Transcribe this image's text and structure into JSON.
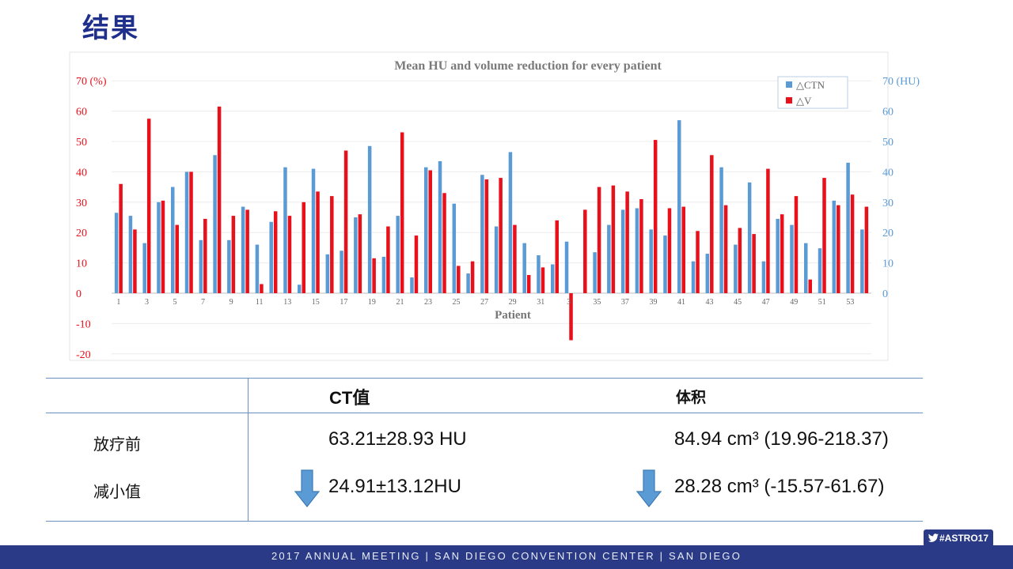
{
  "slide": {
    "title": "结果"
  },
  "chart_data": {
    "type": "bar",
    "title": "Mean HU and volume reduction for every patient",
    "xlabel": "Patient",
    "ylabel_left": "70 (%)",
    "ylabel_right": "70 (HU)",
    "ylim": [
      -20,
      70
    ],
    "ylim_right": [
      0,
      70
    ],
    "yticks_left": [
      "70 (%)",
      "60",
      "50",
      "40",
      "30",
      "20",
      "10",
      "0",
      "-10",
      "-20"
    ],
    "yticks_right": [
      "70 (HU)",
      "60",
      "50",
      "40",
      "30",
      "20",
      "10",
      "0"
    ],
    "xtick_labels": [
      "1",
      "3",
      "5",
      "7",
      "9",
      "11",
      "13",
      "15",
      "17",
      "19",
      "21",
      "23",
      "25",
      "27",
      "29",
      "31",
      "3",
      "35",
      "37",
      "39",
      "41",
      "43",
      "45",
      "47",
      "49",
      "51",
      "53"
    ],
    "legend_position": "top-right",
    "grid": true,
    "colors": {
      "ctn": "#5b9bd5",
      "v": "#e8101a",
      "axis_left": "#e8101a",
      "axis_right": "#5b9bd5"
    },
    "categories": [
      1,
      2,
      3,
      4,
      5,
      6,
      7,
      8,
      9,
      10,
      11,
      12,
      13,
      14,
      15,
      16,
      17,
      18,
      19,
      20,
      21,
      22,
      23,
      24,
      25,
      26,
      27,
      28,
      29,
      30,
      31,
      32,
      33,
      34,
      35,
      36,
      37,
      38,
      39,
      40,
      41,
      42,
      43,
      44,
      45,
      46,
      47,
      48,
      49,
      50,
      51,
      52,
      53,
      54
    ],
    "series": [
      {
        "name": "△CTN",
        "values": [
          26.5,
          25.5,
          16.5,
          30,
          35,
          40,
          17.5,
          45.5,
          17.5,
          28.5,
          16,
          23.5,
          41.5,
          2.8,
          41,
          12.8,
          14,
          25,
          48.5,
          12,
          25.5,
          5.2,
          41.5,
          43.5,
          29.5,
          6.5,
          39,
          22,
          46.5,
          16.5,
          12.5,
          9.5,
          17,
          0,
          13.5,
          22.5,
          27.5,
          28,
          21,
          19,
          57,
          10.5,
          13,
          41.5,
          16,
          36.5,
          10.5,
          24.5,
          22.5,
          16.5,
          14.8,
          30.5,
          43,
          21
        ]
      },
      {
        "name": "△V",
        "values": [
          36,
          21,
          57.5,
          30.5,
          22.5,
          40,
          24.5,
          61.5,
          25.5,
          27.5,
          3,
          27,
          25.5,
          30,
          33.5,
          32,
          47,
          26,
          11.5,
          22,
          53,
          19,
          40.5,
          33,
          9,
          10.5,
          37.5,
          38,
          22.5,
          6,
          8.5,
          24,
          -15.5,
          27.5,
          35,
          35.5,
          33.5,
          31,
          50.5,
          28,
          28.5,
          20.5,
          45.5,
          29,
          21.5,
          19.5,
          41,
          26,
          32,
          4.5,
          38,
          29,
          32.5,
          28.5
        ]
      }
    ]
  },
  "table": {
    "headers": {
      "ct": "CT值",
      "volume": "体积"
    },
    "rows": [
      {
        "label": "放疗前",
        "ct": "63.21±28.93 HU",
        "volume": "84.94 cm³ (19.96-218.37)"
      },
      {
        "label": "减小值",
        "ct": "24.91±13.12HU",
        "volume": "28.28 cm³ (-15.57-61.67)"
      }
    ]
  },
  "footer": {
    "text": "2017 ANNUAL MEETING  |  SAN DIEGO CONVENTION CENTER  |  SAN DIEGO",
    "hashtag": "#ASTRO17"
  }
}
